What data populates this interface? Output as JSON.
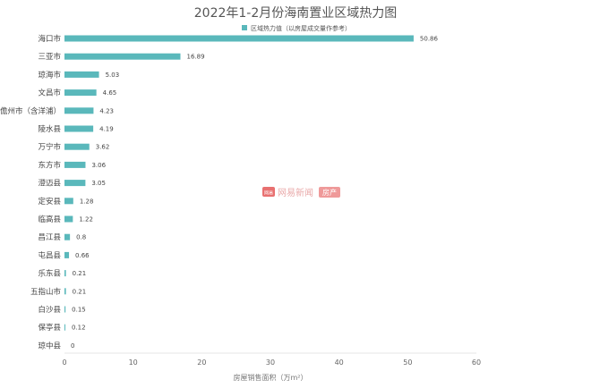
{
  "chart_data": {
    "type": "bar",
    "orientation": "horizontal",
    "title": "2022年1-2月份海南置业区域热力图",
    "xlabel": "房屋销售面积（万m²）",
    "ylabel": "",
    "xlim": [
      0,
      60
    ],
    "xticks": [
      0,
      10,
      20,
      30,
      40,
      50,
      60
    ],
    "legend": {
      "position": "top",
      "label": "区域热力值（以房屋成交量作参考）"
    },
    "grid": false,
    "bar_color": "#5ab8bb",
    "categories": [
      "海口市",
      "三亚市",
      "琼海市",
      "文昌市",
      "儋州市（含洋浦）",
      "陵水县",
      "万宁市",
      "东方市",
      "澄迈县",
      "定安县",
      "临高县",
      "昌江县",
      "屯昌县",
      "乐东县",
      "五指山市",
      "白沙县",
      "保亭县",
      "琼中县"
    ],
    "values": [
      50.86,
      16.89,
      5.03,
      4.65,
      4.23,
      4.19,
      3.62,
      3.06,
      3.05,
      1.28,
      1.22,
      0.8,
      0.66,
      0.21,
      0.21,
      0.15,
      0.12,
      0
    ],
    "value_labels": [
      "50.86",
      "16.89",
      "5.03",
      "4.65",
      "4.23",
      "4.19",
      "3.62",
      "3.06",
      "3.05",
      "1.28",
      "1.22",
      "0.8",
      "0.66",
      "0.21",
      "0.21",
      "0.15",
      "0.12",
      "0"
    ]
  },
  "watermark": {
    "badge": "网易",
    "text": "网易新闻",
    "tag": "房产"
  }
}
